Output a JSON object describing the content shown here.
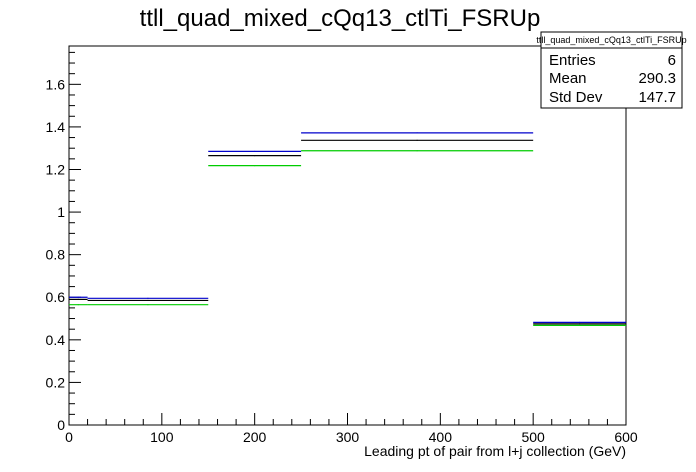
{
  "chart_data": {
    "type": "histogram",
    "title": "ttll_quad_mixed_cQq13_ctlTi_FSRUp",
    "xlabel": "Leading pt of pair from l+j collection (GeV)",
    "ylabel": "",
    "xlim": [
      0,
      600
    ],
    "ylim": [
      0,
      1.78
    ],
    "x_ticks": [
      0,
      100,
      200,
      300,
      400,
      500,
      600
    ],
    "x_tick_labels": [
      "0",
      "100",
      "200",
      "300",
      "400",
      "500",
      "600"
    ],
    "y_ticks": [
      0,
      0.2,
      0.4,
      0.6,
      0.8,
      1.0,
      1.2,
      1.4,
      1.6
    ],
    "y_tick_labels": [
      "0",
      "0.2",
      "0.4",
      "0.6",
      "0.8",
      "1",
      "1.2",
      "1.4",
      "1.6"
    ],
    "grid": false,
    "bin_edges": [
      0,
      20,
      150,
      250,
      500,
      600
    ],
    "series": [
      {
        "color": "#0000cc",
        "values": [
          0.6,
          0.595,
          1.285,
          1.372,
          0.482
        ]
      },
      {
        "color": "#000000",
        "values": [
          0.59,
          0.585,
          1.265,
          1.337,
          0.475
        ]
      },
      {
        "color": "#00cc00",
        "values": [
          0.565,
          0.565,
          1.218,
          1.288,
          0.468
        ]
      }
    ],
    "stats_box": {
      "title": "ttll_quad_mixed_cQq13_ctlTi_FSRUp",
      "rows": [
        {
          "label": "Entries",
          "value": "6"
        },
        {
          "label": "Mean",
          "value": "290.3"
        },
        {
          "label": "Std Dev",
          "value": "147.7"
        }
      ]
    }
  }
}
